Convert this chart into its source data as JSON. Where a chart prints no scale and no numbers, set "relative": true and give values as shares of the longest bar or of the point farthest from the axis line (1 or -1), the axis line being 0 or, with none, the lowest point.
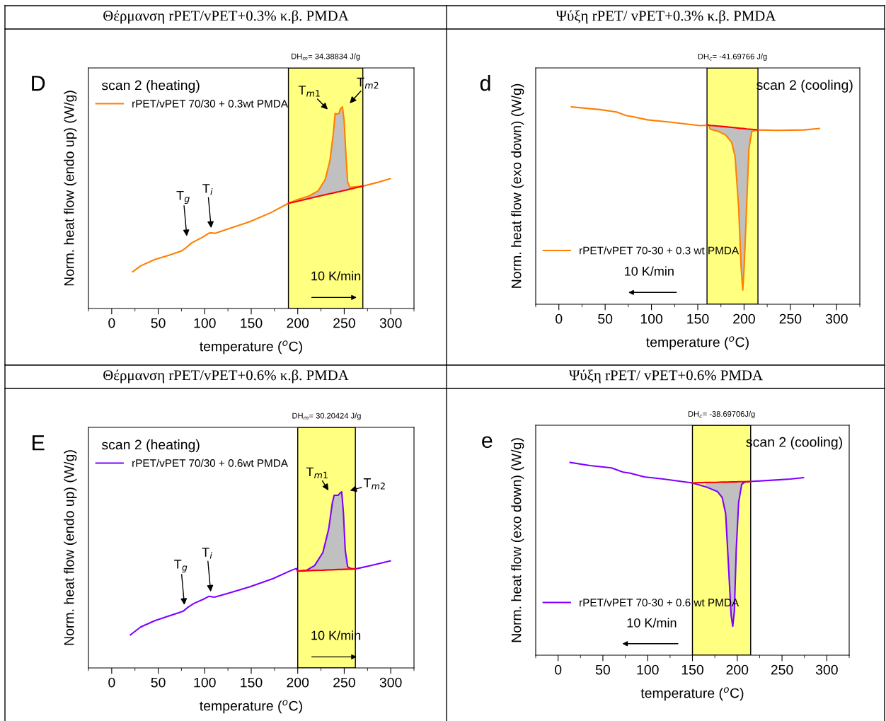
{
  "chart_data": [
    {
      "type": "line",
      "title": "Θέρμανση rPET/vPET+0.3% κ.β. PMDA",
      "xlabel": "temperature ($^{o}$C)",
      "ylabel": "Norm. heat flow (endo up) (W/g)",
      "relative": true,
      "tick_labels": "x",
      "legend": "top left",
      "xlim": [
        -25,
        325
      ],
      "xticks": [
        0,
        50,
        100,
        150,
        200,
        250,
        300
      ],
      "series": [
        {
          "name": "rPET/vPET 70/30 + 0.3wt PMDA",
          "color": "#ff7f00",
          "x": [
            22.6,
            31,
            46.3,
            61.6,
            74.3,
            79.4,
            85.8,
            97.2,
            104.8,
            107.4,
            111.2,
            125.2,
            148.1,
            171,
            190.1,
            199,
            211.7,
            221.9,
            229.5,
            234.6,
            238.4,
            240.2,
            242.7,
            244.3,
            246,
            248.1,
            249.9,
            251.9,
            253.7,
            256.2,
            270.2,
            285.5,
            299.5
          ],
          "values": [
            0.182,
            0.211,
            0.243,
            0.264,
            0.284,
            0.299,
            0.325,
            0.352,
            0.374,
            0.375,
            0.373,
            0.395,
            0.43,
            0.475,
            0.522,
            0.539,
            0.557,
            0.583,
            0.639,
            0.733,
            0.873,
            0.967,
            0.964,
            0.967,
            0.991,
            1.0,
            0.932,
            0.756,
            0.627,
            0.601,
            0.607,
            0.625,
            0.644
          ]
        },
        {
          "type": "area",
          "color": "#c0c0c0",
          "x": [
            190.1,
            199,
            211.7,
            221.9,
            229.5,
            234.6,
            238.4,
            240.2,
            242.7,
            244.3,
            246,
            248.1,
            249.9,
            251.9,
            253.7,
            256.2,
            270.2
          ],
          "values": [
            0.522,
            0.539,
            0.557,
            0.583,
            0.639,
            0.733,
            0.873,
            0.967,
            0.964,
            0.967,
            0.991,
            1.0,
            0.932,
            0.756,
            0.627,
            0.601,
            0.607
          ]
        },
        {
          "type": "line",
          "color": "#ff0000",
          "x": [
            190.1,
            199,
            211.7,
            221.9,
            229.5,
            234.6,
            238.4,
            240.2,
            242.7,
            244.3,
            246,
            248.1,
            249.9,
            251.9,
            253.7,
            256.2,
            270.2
          ],
          "values": [
            0.522,
            0.531,
            0.545,
            0.556,
            0.564,
            0.569,
            0.573,
            0.575,
            0.578,
            0.579,
            0.581,
            0.583,
            0.585,
            0.587,
            0.589,
            0.592,
            0.607
          ]
        }
      ],
      "bands": [
        {
          "axis": "x",
          "from": 190,
          "to": 270,
          "color": "#ffff80"
        }
      ],
      "annotations": [
        "D",
        "DH$_{m}$= 34.38834 J/g",
        "scan 2 (heating)",
        "10 K/min",
        {
          "text": "T$_{g}$",
          "x": 81.2,
          "y": 0.334
        },
        {
          "text": "T$_{i}$",
          "x": 107.4,
          "y": 0.375
        },
        {
          "text": "T$_{m1}$",
          "x": 236,
          "y": 0.97
        },
        {
          "text": "T$_{m2}$",
          "x": 252.4,
          "y": 1.0
        }
      ]
    },
    {
      "type": "line",
      "title": "Ψύξη rPET/ vPET+0.3% κ.β. PMDA",
      "xlabel": "temperature ($^{o}$C)",
      "ylabel": "Norm. heat flow (exo down) (W/g)",
      "relative": true,
      "tick_labels": "x",
      "legend": "bottom left",
      "xlim": [
        -25,
        325
      ],
      "xticks": [
        0,
        50,
        100,
        150,
        200,
        250,
        300
      ],
      "series": [
        {
          "name": "rPET/vPET 70-30 + 0.3 wt PMDA",
          "color": "#ff7f00",
          "x": [
            13.6,
            44.3,
            62.3,
            72.5,
            80.2,
            95.6,
            121.2,
            151.9,
            162.2,
            163.4,
            172.4,
            180.1,
            186.5,
            190.3,
            194.2,
            196.8,
            198.6,
            200.1,
            202.7,
            205.2,
            208.3,
            214.7,
            236.5,
            264.7,
            281.3
          ],
          "values": [
            1.0,
            0.986,
            0.974,
            0.956,
            0.95,
            0.934,
            0.922,
            0.905,
            0.907,
            0.887,
            0.875,
            0.857,
            0.821,
            0.749,
            0.487,
            0.189,
            0.072,
            0.189,
            0.487,
            0.785,
            0.875,
            0.883,
            0.881,
            0.883,
            0.89
          ]
        },
        {
          "type": "area",
          "color": "#c0c0c0",
          "x": [
            163.4,
            172.4,
            180.1,
            186.5,
            190.3,
            194.2,
            196.8,
            198.6,
            200.1,
            202.7,
            205.2,
            208.3,
            214.7
          ],
          "values": [
            0.906,
            0.902,
            0.899,
            0.896,
            0.894,
            0.892,
            0.891,
            0.89,
            0.89,
            0.888,
            0.887,
            0.886,
            0.883
          ]
        },
        {
          "type": "line",
          "color": "#ff0000",
          "x": [
            160.1,
            163.4,
            172.4,
            180.1,
            186.5,
            190.3,
            194.2,
            196.8,
            198.6,
            200.1,
            202.7,
            205.2,
            208.3,
            214.7
          ],
          "values": [
            0.908,
            0.906,
            0.902,
            0.899,
            0.896,
            0.894,
            0.892,
            0.891,
            0.89,
            0.89,
            0.888,
            0.887,
            0.886,
            0.883
          ]
        }
      ],
      "bands": [
        {
          "axis": "x",
          "from": 160,
          "to": 215,
          "color": "#ffff80"
        }
      ],
      "annotations": [
        "d",
        "DH$_{c}$= -41.69766 J/g",
        "scan 2 (cooling)",
        "10 K/min"
      ]
    },
    {
      "type": "line",
      "title": "Θέρμανση rPET/vPET+0.6% κ.β. PMDA",
      "xlabel": "temperature ($^{o}$C)",
      "ylabel": "Norm. heat flow (endo up) (W/g)",
      "relative": true,
      "tick_labels": "x",
      "legend": "top left",
      "xlim": [
        -25,
        325
      ],
      "xticks": [
        0,
        50,
        100,
        150,
        200,
        250,
        300
      ],
      "series": [
        {
          "name": "rPET/vPET 70/30 + 0.6wt PMDA",
          "color": "#7f00ff",
          "x": [
            20.1,
            31,
            46.3,
            61.6,
            76.8,
            81.9,
            88.3,
            99.7,
            104.8,
            108.7,
            111.2,
            125.2,
            148.1,
            173.5,
            191.3,
            198.5,
            199.7,
            209.2,
            218.1,
            227,
            233.3,
            237.2,
            239.2,
            243.5,
            245.5,
            247.3,
            249.1,
            251.1,
            253.7,
            257.5,
            262.1,
            280.4,
            299.5
          ],
          "values": [
            0.188,
            0.232,
            0.268,
            0.295,
            0.322,
            0.344,
            0.366,
            0.393,
            0.407,
            0.403,
            0.403,
            0.424,
            0.46,
            0.507,
            0.55,
            0.565,
            0.55,
            0.554,
            0.581,
            0.655,
            0.789,
            0.937,
            0.98,
            0.98,
            0.993,
            1.0,
            0.883,
            0.668,
            0.574,
            0.564,
            0.562,
            0.584,
            0.608
          ]
        },
        {
          "type": "area",
          "color": "#c0c0c0",
          "x": [
            199.7,
            209.2,
            218.1,
            227,
            233.3,
            237.2,
            239.2,
            243.5,
            245.5,
            247.3,
            249.1,
            251.1,
            253.7,
            257.5,
            262.1
          ],
          "values": [
            0.55,
            0.554,
            0.581,
            0.655,
            0.789,
            0.937,
            0.98,
            0.98,
            0.993,
            1.0,
            0.883,
            0.668,
            0.574,
            0.564,
            0.562
          ]
        },
        {
          "type": "line",
          "color": "#ff0000",
          "x": [
            199.7,
            209.2,
            218.1,
            227,
            233.3,
            237.2,
            239.2,
            243.5,
            245.5,
            247.3,
            249.1,
            251.1,
            253.7,
            257.5,
            262.1
          ],
          "values": [
            0.55,
            0.552,
            0.554,
            0.555,
            0.557,
            0.557,
            0.558,
            0.559,
            0.559,
            0.559,
            0.56,
            0.56,
            0.561,
            0.561,
            0.562
          ]
        }
      ],
      "bands": [
        {
          "axis": "x",
          "from": 200,
          "to": 262,
          "color": "#ffff80"
        }
      ],
      "annotations": [
        "E",
        "DH$_{m}$= 30.20424 J/g",
        "scan 2 (heating)",
        "10 K/min",
        {
          "text": "T$_{g}$",
          "x": 78.6,
          "y": 0.33
        },
        {
          "text": "T$_{i}$",
          "x": 106.9,
          "y": 0.405
        },
        {
          "text": "T$_{m1}$",
          "x": 235.9,
          "y": 0.984
        },
        {
          "text": "T$_{m2}$",
          "x": 251.1,
          "y": 1.0
        }
      ]
    },
    {
      "type": "line",
      "title": "Ψύξη rPET/ vPET+0.6% PMDA",
      "xlabel": "temperature ($^{o}$C)",
      "ylabel": "Norm. heat flow (exo down) (W/g)",
      "relative": true,
      "tick_labels": "x",
      "legend": "bottom left",
      "xlim": [
        -25,
        325
      ],
      "xticks": [
        0,
        50,
        100,
        150,
        200,
        250,
        300
      ],
      "series": [
        {
          "name": "rPET/vPET 70-30 + 0.6 wt PMDA",
          "color": "#7f00ff",
          "x": [
            13.4,
            35.8,
            59.5,
            72.6,
            80.5,
            96.3,
            117.4,
            149.7,
            164.7,
            177.9,
            183.2,
            187.1,
            189.7,
            193.2,
            195,
            196.8,
            198.9,
            201.6,
            205,
            208.2,
            214.7,
            246.3,
            259.5,
            273.9
          ],
          "values": [
            1.0,
            0.984,
            0.972,
            0.95,
            0.944,
            0.925,
            0.914,
            0.894,
            0.874,
            0.849,
            0.818,
            0.733,
            0.512,
            0.205,
            0.15,
            0.229,
            0.548,
            0.794,
            0.886,
            0.898,
            0.901,
            0.91,
            0.914,
            0.921
          ]
        },
        {
          "type": "area",
          "color": "#c0c0c0",
          "x": [
            164.7,
            177.9,
            183.2,
            187.1,
            189.7,
            193.2,
            195,
            196.8,
            198.9,
            201.6,
            205,
            208.2,
            214.7
          ],
          "values": [
            0.896,
            0.897,
            0.898,
            0.898,
            0.898,
            0.899,
            0.899,
            0.899,
            0.899,
            0.9,
            0.9,
            0.9,
            0.901
          ]
        },
        {
          "type": "line",
          "color": "#ff0000",
          "x": [
            149.7,
            164.7,
            177.9,
            183.2,
            187.1,
            189.7,
            193.2,
            195,
            196.8,
            198.9,
            201.6,
            205,
            208.2,
            214.7
          ],
          "values": [
            0.894,
            0.896,
            0.897,
            0.898,
            0.898,
            0.898,
            0.899,
            0.899,
            0.899,
            0.899,
            0.9,
            0.9,
            0.9,
            0.901
          ]
        }
      ],
      "bands": [
        {
          "axis": "x",
          "from": 150,
          "to": 215,
          "color": "#ffff80"
        }
      ],
      "annotations": [
        "e",
        "DH$_{c}$= -38.69706J/g",
        "scan 2 (cooling)",
        "10 K/min"
      ]
    }
  ]
}
